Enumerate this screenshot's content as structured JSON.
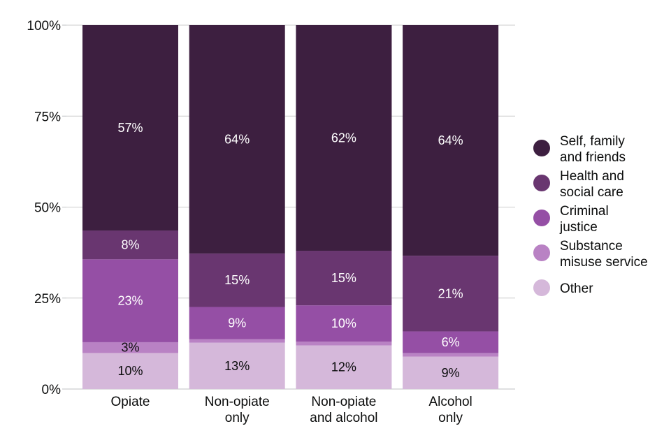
{
  "chart_data": {
    "type": "bar",
    "stacked": true,
    "normalized": true,
    "categories": [
      [
        "Opiate"
      ],
      [
        "Non-opiate",
        "only"
      ],
      [
        "Non-opiate",
        "and alcohol"
      ],
      [
        "Alcohol",
        "only"
      ]
    ],
    "series": [
      {
        "name": "Other",
        "label_lines": [
          "Other"
        ],
        "color": "#d5b8da",
        "values": [
          10,
          13,
          12,
          9
        ],
        "labels": [
          "10%",
          "13%",
          "12%",
          "9%"
        ],
        "label_color": "#0b0c0c"
      },
      {
        "name": "Substance misuse service",
        "label_lines": [
          "Substance",
          "misuse service"
        ],
        "color": "#b982c4",
        "values": [
          3,
          1,
          1,
          1
        ],
        "labels": [
          "3%",
          "",
          "",
          ""
        ],
        "label_color": "#0b0c0c"
      },
      {
        "name": "Criminal justice",
        "label_lines": [
          "Criminal",
          "justice"
        ],
        "color": "#954fa5",
        "values": [
          23,
          9,
          10,
          6
        ],
        "labels": [
          "23%",
          "9%",
          "10%",
          "6%"
        ],
        "label_color": "#ffffff"
      },
      {
        "name": "Health and social care",
        "label_lines": [
          "Health and",
          "social care"
        ],
        "color": "#693670",
        "values": [
          8,
          15,
          15,
          21
        ],
        "labels": [
          "8%",
          "15%",
          "15%",
          "21%"
        ],
        "label_color": "#ffffff"
      },
      {
        "name": "Self, family and friends",
        "label_lines": [
          "Self, family",
          "and friends"
        ],
        "color": "#3d1f40",
        "values": [
          57,
          64,
          62,
          64
        ],
        "labels": [
          "57%",
          "64%",
          "62%",
          "64%"
        ],
        "label_color": "#ffffff"
      }
    ],
    "legend_order": [
      "Self, family and friends",
      "Health and social care",
      "Criminal justice",
      "Substance misuse service",
      "Other"
    ],
    "y_ticks": [
      "0%",
      "25%",
      "50%",
      "75%",
      "100%"
    ],
    "ylim": [
      0,
      100
    ],
    "grid": true,
    "legend_position": "right",
    "title": "",
    "xlabel": "",
    "ylabel": ""
  }
}
